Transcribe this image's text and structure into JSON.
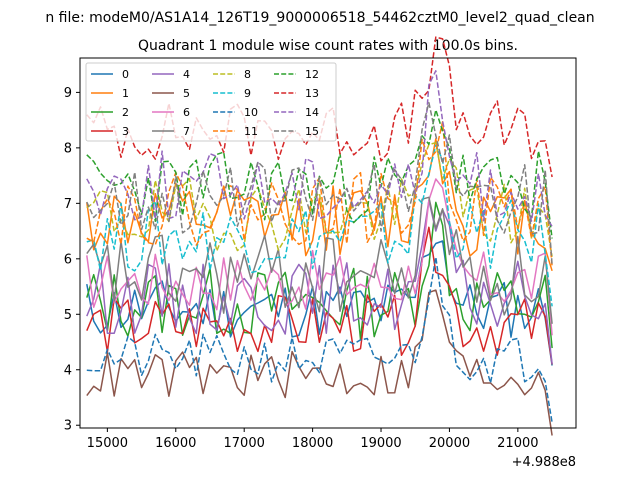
{
  "chart_data": {
    "type": "line",
    "suptitle": "n file: modeM0/AS1A14_126T19_9000006518_54462cztM0_level2_quad_clean",
    "title": "Quadrant 1 module wise count rates with 100.0s bins.",
    "xlabel": "",
    "ylabel": "",
    "x_offset_label": "+4.988e8",
    "xlim": [
      14600,
      21850
    ],
    "ylim": [
      2.95,
      9.62
    ],
    "x_start": 14700,
    "x_step": 100,
    "x_count": 69,
    "x_ticks": [
      15000,
      16000,
      17000,
      18000,
      19000,
      20000,
      21000
    ],
    "x_tick_labels": [
      "15000",
      "16000",
      "17000",
      "18000",
      "19000",
      "20000",
      "21000"
    ],
    "y_ticks": [
      3,
      4,
      5,
      6,
      7,
      8,
      9
    ],
    "y_tick_labels": [
      "3",
      "4",
      "5",
      "6",
      "7",
      "8",
      "9"
    ],
    "legend_position": "upper-left",
    "legend_columns": 4,
    "series": [
      {
        "name": "0",
        "color": "#1f77b4",
        "style": "solid",
        "base": 5.1,
        "amp": 0.25,
        "seed": 11
      },
      {
        "name": "1",
        "color": "#ff7f0e",
        "style": "solid",
        "base": 6.7,
        "amp": 0.3,
        "seed": 12
      },
      {
        "name": "2",
        "color": "#2ca02c",
        "style": "solid",
        "base": 5.2,
        "amp": 0.3,
        "seed": 13
      },
      {
        "name": "3",
        "color": "#d62728",
        "style": "solid",
        "base": 4.8,
        "amp": 0.25,
        "seed": 14
      },
      {
        "name": "4",
        "color": "#9467bd",
        "style": "solid",
        "base": 5.3,
        "amp": 0.3,
        "seed": 15
      },
      {
        "name": "5",
        "color": "#8c564b",
        "style": "solid",
        "base": 3.9,
        "amp": 0.2,
        "seed": 16
      },
      {
        "name": "6",
        "color": "#e377c2",
        "style": "solid",
        "base": 5.6,
        "amp": 0.25,
        "seed": 17
      },
      {
        "name": "7",
        "color": "#7f7f7f",
        "style": "solid",
        "base": 5.7,
        "amp": 0.35,
        "seed": 18
      },
      {
        "name": "8",
        "color": "#bcbd22",
        "style": "dashed",
        "base": 6.8,
        "amp": 0.3,
        "seed": 19
      },
      {
        "name": "9",
        "color": "#17becf",
        "style": "dashed",
        "base": 6.4,
        "amp": 0.3,
        "seed": 20
      },
      {
        "name": "10",
        "color": "#1f77b4",
        "style": "dashed",
        "base": 4.2,
        "amp": 0.2,
        "seed": 21
      },
      {
        "name": "11",
        "color": "#ff7f0e",
        "style": "dashed",
        "base": 6.9,
        "amp": 0.3,
        "seed": 22
      },
      {
        "name": "12",
        "color": "#2ca02c",
        "style": "dashed",
        "base": 7.3,
        "amp": 0.3,
        "seed": 23
      },
      {
        "name": "13",
        "color": "#d62728",
        "style": "dashed",
        "base": 8.3,
        "amp": 0.25,
        "seed": 24
      },
      {
        "name": "14",
        "color": "#9467bd",
        "style": "dashed",
        "base": 7.3,
        "amp": 0.3,
        "seed": 25
      },
      {
        "name": "15",
        "color": "#7f7f7f",
        "style": "dashed",
        "base": 7.1,
        "amp": 0.3,
        "seed": 26
      }
    ]
  }
}
